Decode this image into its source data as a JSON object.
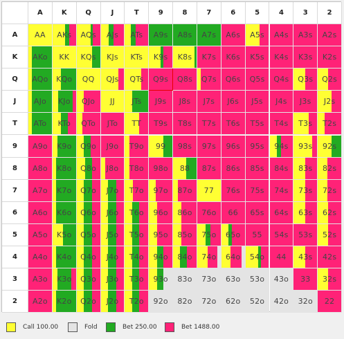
{
  "ranks": [
    "A",
    "K",
    "Q",
    "J",
    "T",
    "9",
    "8",
    "7",
    "6",
    "5",
    "4",
    "3",
    "2"
  ],
  "selected_hand": "Q9s",
  "colors": {
    "call": "#ffff33",
    "fold": "#e4e4e4",
    "bet_small": "#22aa22",
    "bet_large": "#ff2277"
  },
  "legend": [
    {
      "key": "call",
      "label": "Call 100.00"
    },
    {
      "key": "fold",
      "label": "Fold"
    },
    {
      "key": "bet_small",
      "label": "Bet 250.00"
    },
    {
      "key": "bet_large",
      "label": "Bet 1488.00"
    }
  ],
  "strategy": {
    "AA": {
      "call": 1.0
    },
    "AKs": {
      "call": 0.55,
      "bet_small": 0.15,
      "bet_large": 0.3
    },
    "AQs": {
      "call": 0.6,
      "bet_small": 0.1,
      "bet_large": 0.3
    },
    "AJs": {
      "call": 0.35,
      "bet_small": 0.2,
      "bet_large": 0.45
    },
    "ATs": {
      "call": 0.25,
      "bet_small": 0.2,
      "bet_large": 0.55
    },
    "A9s": {
      "bet_small": 1.0
    },
    "A8s": {
      "bet_small": 1.0
    },
    "A7s": {
      "bet_small": 1.0
    },
    "A6s": {
      "bet_large": 1.0
    },
    "A5s": {
      "call": 0.6,
      "bet_large": 0.4
    },
    "A4s": {
      "bet_large": 1.0
    },
    "A3s": {
      "bet_large": 1.0
    },
    "A2s": {
      "bet_large": 1.0
    },
    "AKo": {
      "call": 0.15,
      "bet_small": 0.85
    },
    "KK": {
      "call": 1.0
    },
    "KQs": {
      "call": 0.65,
      "bet_small": 0.35
    },
    "KJs": {
      "call": 1.0
    },
    "KTs": {
      "call": 1.0
    },
    "K9s": {
      "call": 0.5,
      "bet_small": 0.1,
      "bet_large": 0.4
    },
    "K8s": {
      "call": 0.9,
      "bet_small": 0.1
    },
    "K7s": {
      "bet_large": 1.0
    },
    "K6s": {
      "bet_large": 1.0
    },
    "K5s": {
      "bet_large": 1.0
    },
    "K4s": {
      "bet_large": 1.0
    },
    "K3s": {
      "bet_large": 1.0
    },
    "K2s": {
      "bet_large": 1.0
    },
    "AQo": {
      "call": 0.15,
      "bet_small": 0.85
    },
    "KQo": {
      "call": 0.35,
      "bet_small": 0.65
    },
    "QQ": {
      "call": 1.0
    },
    "QJs": {
      "call": 0.75,
      "bet_large": 0.25
    },
    "QTs": {
      "call": 0.7,
      "bet_large": 0.3
    },
    "Q9s": {
      "bet_large": 1.0
    },
    "Q8s": {
      "bet_large": 1.0
    },
    "Q7s": {
      "call": 0.15,
      "bet_large": 0.85
    },
    "Q6s": {
      "bet_large": 1.0
    },
    "Q5s": {
      "bet_large": 1.0
    },
    "Q4s": {
      "bet_large": 1.0
    },
    "Q3s": {
      "call": 0.5,
      "bet_large": 0.5
    },
    "Q2s": {
      "call": 0.45,
      "bet_large": 0.55
    },
    "AJo": {
      "call": 0.15,
      "bet_small": 0.85
    },
    "KJo": {
      "call": 0.25,
      "bet_small": 0.6,
      "bet_large": 0.15
    },
    "QJo": {
      "call": 0.3,
      "bet_large": 0.7
    },
    "JJ": {
      "call": 1.0
    },
    "JTs": {
      "call": 0.3,
      "bet_small": 0.7
    },
    "J9s": {
      "bet_large": 1.0
    },
    "J8s": {
      "bet_large": 1.0
    },
    "J7s": {
      "bet_large": 1.0
    },
    "J6s": {
      "bet_large": 1.0
    },
    "J5s": {
      "bet_large": 1.0
    },
    "J4s": {
      "bet_large": 1.0
    },
    "J3s": {
      "bet_large": 1.0
    },
    "J2s": {
      "call": 0.6,
      "bet_large": 0.4
    },
    "ATo": {
      "call": 0.15,
      "bet_small": 0.85
    },
    "KTo": {
      "call": 0.35,
      "bet_small": 0.3,
      "bet_large": 0.35
    },
    "QTo": {
      "call": 0.25,
      "bet_large": 0.75
    },
    "JTo": {
      "bet_large": 1.0
    },
    "TT": {
      "call": 0.6,
      "bet_large": 0.4
    },
    "T9s": {
      "bet_large": 1.0
    },
    "T8s": {
      "bet_large": 1.0
    },
    "T7s": {
      "bet_large": 1.0
    },
    "T6s": {
      "bet_large": 1.0
    },
    "T5s": {
      "bet_large": 1.0
    },
    "T4s": {
      "bet_large": 1.0
    },
    "T3s": {
      "call": 0.65,
      "bet_large": 0.35
    },
    "T2s": {
      "call": 0.3,
      "bet_large": 0.7
    },
    "A9o": {
      "bet_large": 1.0
    },
    "K9o": {
      "call": 0.2,
      "bet_small": 0.8
    },
    "Q9o": {
      "call": 0.3,
      "bet_small": 0.3,
      "bet_large": 0.4
    },
    "J9o": {
      "bet_large": 1.0
    },
    "T9o": {
      "bet_large": 0.8,
      "call": 0.2
    },
    "99": {
      "call": 0.6,
      "bet_small": 0.4
    },
    "98s": {
      "bet_large": 1.0
    },
    "97s": {
      "bet_large": 1.0
    },
    "96s": {
      "bet_large": 1.0
    },
    "95s": {
      "bet_large": 1.0
    },
    "94s": {
      "bet_large": 0.5,
      "call": 0.3,
      "bet_small": 0.2
    },
    "93s": {
      "call": 0.8,
      "bet_large": 0.2
    },
    "92s": {
      "call": 0.6,
      "bet_small": 0.4
    },
    "A8o": {
      "bet_large": 1.0
    },
    "K8o": {
      "call": 0.15,
      "bet_small": 0.85
    },
    "Q8o": {
      "call": 0.35,
      "bet_small": 0.3,
      "bet_large": 0.35
    },
    "J8o": {
      "call": 0.2,
      "bet_large": 0.8
    },
    "T8o": {
      "call": 0.2,
      "bet_large": 0.8
    },
    "98o": {
      "bet_large": 1.0
    },
    "88": {
      "call": 0.55,
      "bet_small": 0.45
    },
    "87s": {
      "bet_large": 1.0
    },
    "86s": {
      "bet_large": 1.0
    },
    "85s": {
      "bet_large": 1.0
    },
    "84s": {
      "bet_large": 1.0
    },
    "83s": {
      "call": 0.5,
      "bet_large": 0.5
    },
    "82s": {
      "call": 0.4,
      "bet_large": 0.6
    },
    "A7o": {
      "bet_large": 1.0
    },
    "K7o": {
      "call": 0.15,
      "bet_small": 0.85
    },
    "Q7o": {
      "call": 0.3,
      "bet_small": 0.35,
      "bet_large": 0.35
    },
    "J7o": {
      "call": 0.3,
      "bet_small": 0.35,
      "bet_large": 0.35
    },
    "T7o": {
      "call": 0.35,
      "bet_large": 0.65
    },
    "97o": {
      "call": 0.3,
      "bet_large": 0.7
    },
    "87o": {
      "call": 0.2,
      "bet_large": 0.8
    },
    "77": {
      "call": 1.0
    },
    "76s": {
      "bet_large": 1.0
    },
    "75s": {
      "bet_large": 1.0
    },
    "74s": {
      "bet_large": 1.0
    },
    "73s": {
      "call": 0.5,
      "bet_large": 0.5
    },
    "72s": {
      "call": 0.4,
      "bet_large": 0.6
    },
    "A6o": {
      "bet_large": 1.0
    },
    "K6o": {
      "call": 0.15,
      "bet_small": 0.85
    },
    "Q6o": {
      "call": 0.3,
      "bet_small": 0.35,
      "bet_large": 0.35
    },
    "J6o": {
      "call": 0.3,
      "bet_small": 0.35,
      "bet_large": 0.35
    },
    "T6o": {
      "call": 0.3,
      "bet_small": 0.3,
      "bet_large": 0.4
    },
    "96o": {
      "call": 0.35,
      "bet_large": 0.65
    },
    "86o": {
      "call": 0.35,
      "bet_large": 0.65
    },
    "76o": {
      "bet_large": 1.0
    },
    "66": {
      "bet_large": 1.0
    },
    "65s": {
      "bet_large": 1.0
    },
    "64s": {
      "bet_large": 1.0
    },
    "63s": {
      "call": 0.5,
      "bet_large": 0.5
    },
    "62s": {
      "call": 0.45,
      "bet_large": 0.55
    },
    "A5o": {
      "bet_large": 1.0
    },
    "K5o": {
      "call": 0.45,
      "bet_small": 0.55
    },
    "Q5o": {
      "call": 0.3,
      "bet_small": 0.35,
      "bet_large": 0.35
    },
    "J5o": {
      "call": 0.3,
      "bet_small": 0.35,
      "bet_large": 0.35
    },
    "T5o": {
      "call": 0.3,
      "bet_small": 0.3,
      "bet_large": 0.4
    },
    "95o": {
      "call": 0.35,
      "bet_large": 0.65
    },
    "85o": {
      "call": 0.35,
      "bet_large": 0.65
    },
    "75o": {
      "call": 0.35,
      "bet_small": 0.2,
      "bet_large": 0.45
    },
    "65o": {
      "call": 0.3,
      "bet_small": 0.15,
      "bet_large": 0.55
    },
    "55": {
      "bet_large": 1.0
    },
    "54s": {
      "bet_large": 1.0
    },
    "53s": {
      "bet_large": 1.0
    },
    "52s": {
      "call": 0.45,
      "bet_large": 0.55
    },
    "A4o": {
      "bet_large": 1.0
    },
    "K4o": {
      "call": 0.15,
      "bet_small": 0.85
    },
    "Q4o": {
      "call": 0.3,
      "bet_small": 0.35,
      "bet_large": 0.35
    },
    "J4o": {
      "call": 0.3,
      "bet_small": 0.35,
      "bet_large": 0.35
    },
    "T4o": {
      "call": 0.3,
      "bet_small": 0.3,
      "bet_large": 0.4
    },
    "94o": {
      "call": 0.35,
      "bet_small": 0.25,
      "bet_large": 0.4
    },
    "84o": {
      "call": 0.3,
      "bet_small": 0.3,
      "bet_large": 0.4
    },
    "74o": {
      "call": 0.45,
      "fold": 0.15,
      "bet_large": 0.4
    },
    "64o": {
      "call": 0.4,
      "fold": 0.15,
      "bet_large": 0.45
    },
    "54o": {
      "call": 0.55,
      "bet_small": 0.1,
      "bet_large": 0.35
    },
    "44": {
      "bet_large": 1.0
    },
    "43s": {
      "call": 0.5,
      "bet_large": 0.5
    },
    "42s": {
      "bet_large": 1.0
    },
    "A3o": {
      "bet_large": 1.0
    },
    "K3o": {
      "call": 0.2,
      "bet_small": 0.6,
      "bet_large": 0.2
    },
    "Q3o": {
      "call": 0.3,
      "bet_small": 0.35,
      "bet_large": 0.35
    },
    "J3o": {
      "call": 0.3,
      "bet_small": 0.35,
      "bet_large": 0.35
    },
    "T3o": {
      "call": 0.3,
      "bet_small": 0.3,
      "bet_large": 0.4
    },
    "93o": {
      "call": 0.35,
      "fold": 0.4,
      "bet_small": 0.25
    },
    "83o": {
      "fold": 1.0
    },
    "73o": {
      "fold": 1.0
    },
    "63o": {
      "fold": 1.0
    },
    "53o": {
      "fold": 1.0
    },
    "43o": {
      "fold": 1.0
    },
    "33": {
      "bet_large": 1.0
    },
    "32s": {
      "call": 0.45,
      "bet_large": 0.55
    },
    "A2o": {
      "bet_large": 1.0
    },
    "K2o": {
      "call": 0.15,
      "bet_small": 0.85
    },
    "Q2o": {
      "call": 0.3,
      "bet_small": 0.35,
      "bet_large": 0.35
    },
    "J2o": {
      "call": 0.3,
      "bet_small": 0.35,
      "bet_large": 0.35
    },
    "T2o": {
      "call": 0.3,
      "bet_small": 0.3,
      "bet_large": 0.4
    },
    "92o": {
      "fold": 1.0
    },
    "82o": {
      "fold": 1.0
    },
    "72o": {
      "fold": 1.0
    },
    "62o": {
      "fold": 1.0
    },
    "52o": {
      "fold": 1.0
    },
    "42o": {
      "fold": 1.0
    },
    "32o": {
      "fold": 1.0
    },
    "22": {
      "bet_large": 1.0
    }
  }
}
